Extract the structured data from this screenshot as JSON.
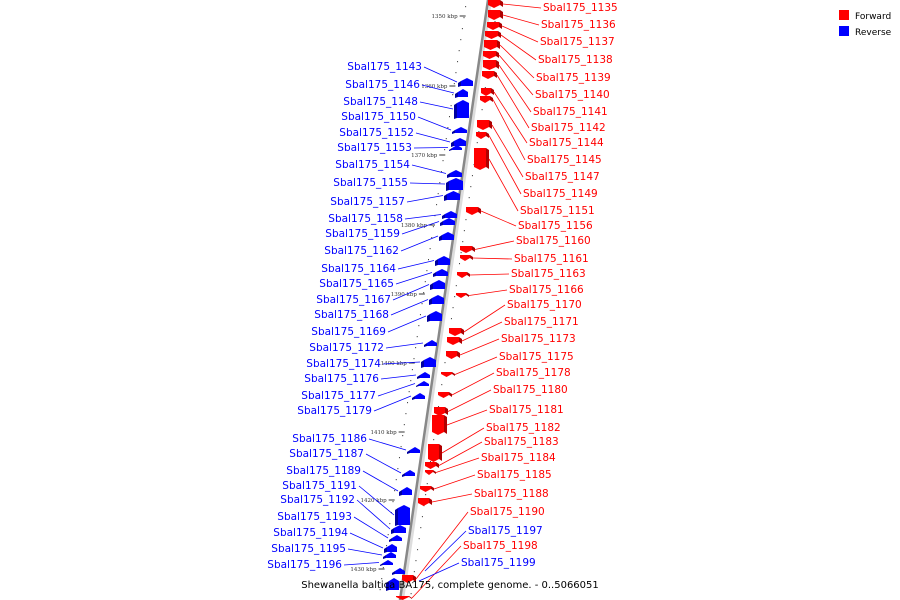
{
  "title": "Shewanella baltica BA175, complete genome. - 0..5066051",
  "legend": [
    {
      "label": "Forward",
      "color": "#ff0000"
    },
    {
      "label": "Reverse",
      "color": "#0000ff"
    }
  ],
  "colors": {
    "forward": "#ff0000",
    "reverse": "#0000ff",
    "axis": "#888888"
  },
  "ticks": [
    "1350 kbp",
    "1360 kbp",
    "1370 kbp",
    "1380 kbp",
    "1390 kbp",
    "1400 kbp",
    "1410 kbp",
    "1420 kbp",
    "1430 kbp"
  ],
  "forward_genes": [
    "Sbal175_1135",
    "Sbal175_1136",
    "Sbal175_1137",
    "Sbal175_1138",
    "Sbal175_1139",
    "Sbal175_1140",
    "Sbal175_1141",
    "Sbal175_1142",
    "Sbal175_1144",
    "Sbal175_1145",
    "Sbal175_1147",
    "Sbal175_1149",
    "Sbal175_1151",
    "Sbal175_1156",
    "Sbal175_1160",
    "Sbal175_1161",
    "Sbal175_1163",
    "Sbal175_1166",
    "Sbal175_1170",
    "Sbal175_1171",
    "Sbal175_1173",
    "Sbal175_1175",
    "Sbal175_1178",
    "Sbal175_1180",
    "Sbal175_1181",
    "Sbal175_1182",
    "Sbal175_1183",
    "Sbal175_1184",
    "Sbal175_1185",
    "Sbal175_1188",
    "Sbal175_1190",
    "Sbal175_1198"
  ],
  "reverse_genes": [
    "Sbal175_1143",
    "Sbal175_1146",
    "Sbal175_1148",
    "Sbal175_1150",
    "Sbal175_1152",
    "Sbal175_1153",
    "Sbal175_1154",
    "Sbal175_1155",
    "Sbal175_1157",
    "Sbal175_1158",
    "Sbal175_1159",
    "Sbal175_1162",
    "Sbal175_1164",
    "Sbal175_1165",
    "Sbal175_1167",
    "Sbal175_1168",
    "Sbal175_1169",
    "Sbal175_1172",
    "Sbal175_1174",
    "Sbal175_1176",
    "Sbal175_1177",
    "Sbal175_1179",
    "Sbal175_1186",
    "Sbal175_1187",
    "Sbal175_1189",
    "Sbal175_1191",
    "Sbal175_1192",
    "Sbal175_1193",
    "Sbal175_1194",
    "Sbal175_1195",
    "Sbal175_1196",
    "Sbal175_1197",
    "Sbal175_1199"
  ]
}
